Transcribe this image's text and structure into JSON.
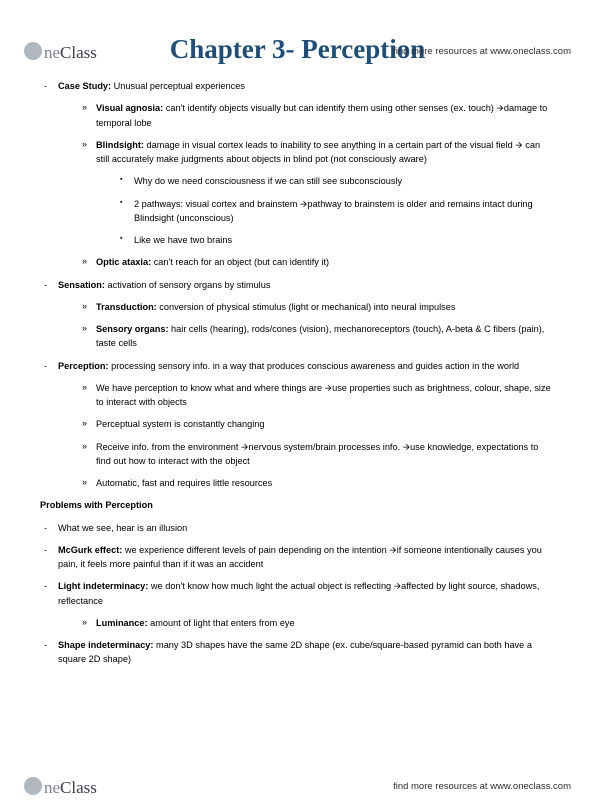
{
  "brand": {
    "part1": "ne",
    "part2": "Class"
  },
  "tagline": "find more resources at www.oneclass.com",
  "title": "Chapter 3- Perception",
  "colors": {
    "title": "#1f4e79",
    "text": "#000000",
    "logo_light": "#7a828b",
    "logo_dark": "#3a3f46",
    "logo_circle": "#b0b7bf",
    "bg": "#ffffff"
  },
  "items": [
    {
      "lead": "Case Study:",
      "rest": " Unusual perceptual experiences",
      "sub": [
        {
          "lead": "Visual agnosia:",
          "rest": " can't identify objects visually but can identify them using other senses (ex. touch) 🡪damage to temporal lobe"
        },
        {
          "lead": "Blindsight:",
          "rest": " damage in visual cortex leads to inability to see anything in a certain part of the visual field 🡪 can still accurately make judgments about objects in blind pot (not consciously aware)",
          "sub2": [
            {
              "text": "Why do we need consciousness if we can still see subconsciously"
            },
            {
              "text": "2 pathways: visual cortex and brainstem 🡪pathway to brainstem is older and remains intact during Blindsight (unconscious)"
            },
            {
              "text": "Like we have two brains"
            }
          ]
        },
        {
          "lead": "Optic ataxia:",
          "rest": " can't reach for an object (but can identify it)"
        }
      ]
    },
    {
      "lead": "Sensation:",
      "rest": " activation of sensory organs by stimulus",
      "sub": [
        {
          "lead": "Transduction:",
          "rest": " conversion of physical stimulus (light or mechanical) into neural impulses"
        },
        {
          "lead": "Sensory organs:",
          "rest": " hair cells (hearing), rods/cones (vision), mechanoreceptors (touch), A-beta & C fibers (pain), taste cells"
        }
      ]
    },
    {
      "lead": "Perception:",
      "rest": " processing sensory info. in a way that produces conscious awareness and guides action in the world",
      "sub": [
        {
          "text": "We have perception to know what and where things are 🡪use properties such as brightness, colour, shape, size to interact with objects"
        },
        {
          "text": "Perceptual system is constantly changing"
        },
        {
          "text": "Receive info. from the environment 🡪nervous system/brain processes info. 🡪use knowledge, expectations to find out how to interact with the object"
        },
        {
          "text": "Automatic, fast and requires little resources"
        }
      ]
    }
  ],
  "section_head": "Problems with Perception",
  "problems": [
    {
      "text": "What we see, hear is an illusion"
    },
    {
      "lead": "McGurk effect:",
      "rest": " we experience different levels of pain depending on the intention 🡪if someone intentionally causes you pain, it feels more painful than if it was an accident"
    },
    {
      "lead": "Light indeterminacy:",
      "rest": " we don't know how much light the actual object is reflecting 🡪affected by light source, shadows, reflectance",
      "sub": [
        {
          "lead": "Luminance:",
          "rest": " amount of light that enters from eye"
        }
      ]
    },
    {
      "lead": "Shape indeterminacy:",
      "rest": " many 3D shapes have the same 2D shape (ex. cube/square-based pyramid can both have a square 2D shape)"
    }
  ]
}
